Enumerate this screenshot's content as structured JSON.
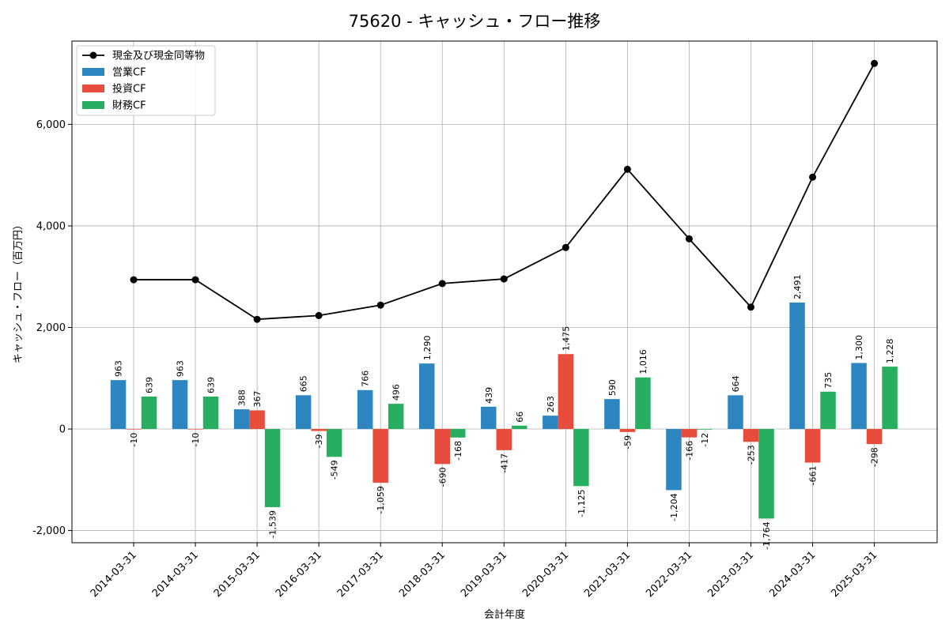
{
  "chart_data": {
    "type": "bar",
    "title": "75620 - キャッシュ・フロー推移",
    "xlabel": "会計年度",
    "ylabel": "キャッシュ・フロー（百万円）",
    "categories": [
      "2014-03-31",
      "2014-03-31",
      "2015-03-31",
      "2016-03-31",
      "2017-03-31",
      "2018-03-31",
      "2019-03-31",
      "2020-03-31",
      "2021-03-31",
      "2022-03-31",
      "2023-03-31",
      "2024-03-31",
      "2025-03-31"
    ],
    "yticks": [
      -2000,
      0,
      2000,
      4000,
      6000
    ],
    "ytick_labels": [
      "-2,000",
      "0",
      "2,000",
      "4,000",
      "6,000"
    ],
    "ylim": [
      -2240,
      7640
    ],
    "grid": true,
    "legend_position": "upper-left",
    "series": [
      {
        "name": "営業CF",
        "kind": "bar",
        "color": "#2e86c1",
        "values": [
          963,
          963,
          388,
          665,
          766,
          1290,
          439,
          263,
          590,
          -1204,
          664,
          2491,
          1300
        ],
        "labels": [
          "963",
          "963",
          "388",
          "665",
          "766",
          "1,290",
          "439",
          "263",
          "590",
          "-1,204",
          "664",
          "2,491",
          "1,300"
        ]
      },
      {
        "name": "投資CF",
        "kind": "bar",
        "color": "#e74c3c",
        "values": [
          -10,
          -10,
          367,
          -39,
          -1059,
          -690,
          -417,
          1475,
          -59,
          -166,
          -253,
          -661,
          -298
        ],
        "labels": [
          "-10",
          "-10",
          "367",
          "-39",
          "-1,059",
          "-690",
          "-417",
          "1,475",
          "-59",
          "-166",
          "-253",
          "-661",
          "-298"
        ]
      },
      {
        "name": "財務CF",
        "kind": "bar",
        "color": "#27ae60",
        "values": [
          639,
          639,
          -1539,
          -549,
          496,
          -168,
          66,
          -1125,
          1016,
          -12,
          -1764,
          735,
          1228
        ],
        "labels": [
          "639",
          "639",
          "-1,539",
          "-549",
          "496",
          "-168",
          "66",
          "-1,125",
          "1,016",
          "-12",
          "-1,764",
          "735",
          "1,228"
        ]
      },
      {
        "name": "現金及び現金同等物",
        "kind": "line",
        "color": "#000000",
        "values": [
          2940,
          2940,
          2160,
          2235,
          2440,
          2865,
          2955,
          3575,
          5115,
          3745,
          2400,
          4960,
          7200
        ]
      }
    ]
  }
}
